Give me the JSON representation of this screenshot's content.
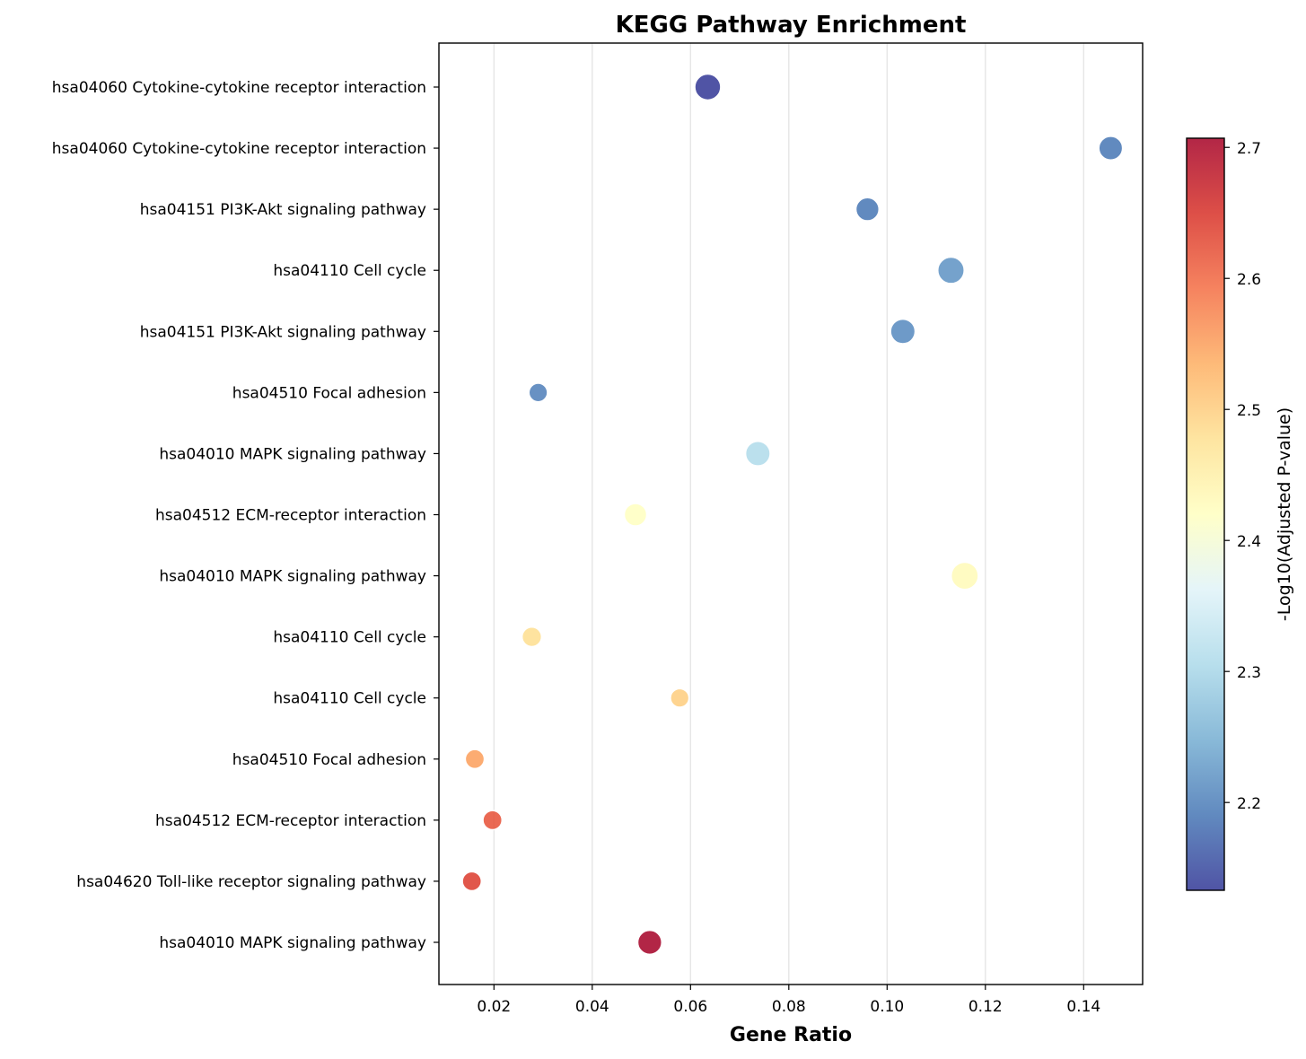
{
  "chart_data": {
    "type": "scatter",
    "title": "KEGG Pathway Enrichment",
    "xlabel": "Gene Ratio",
    "ylabel": "",
    "xlim": [
      0.0088,
      0.152
    ],
    "xticks": [
      0.02,
      0.04,
      0.06,
      0.08,
      0.1,
      0.12,
      0.14
    ],
    "xtick_labels": [
      "0.02",
      "0.04",
      "0.06",
      "0.08",
      "0.10",
      "0.12",
      "0.14"
    ],
    "grid": "vertical",
    "colorbar": {
      "label": "-Log10(Adjusted P-value)",
      "colormap": "RdYlBu_r",
      "range": [
        2.133,
        2.707
      ],
      "ticks": [
        2.2,
        2.3,
        2.4,
        2.5,
        2.6,
        2.7
      ],
      "tick_labels": [
        "2.2",
        "2.3",
        "2.4",
        "2.5",
        "2.6",
        "2.7"
      ]
    },
    "points": [
      {
        "label": "hsa04060 Cytokine-cytokine receptor interaction",
        "x": 0.0635,
        "neglog10p": 2.133,
        "size": 30
      },
      {
        "label": "hsa04060 Cytokine-cytokine receptor interaction",
        "x": 0.1455,
        "neglog10p": 2.19,
        "size": 22
      },
      {
        "label": "hsa04151 PI3K-Akt signaling pathway",
        "x": 0.096,
        "neglog10p": 2.19,
        "size": 20
      },
      {
        "label": "hsa04110 Cell cycle",
        "x": 0.113,
        "neglog10p": 2.22,
        "size": 32
      },
      {
        "label": "hsa04151 PI3K-Akt signaling pathway",
        "x": 0.1032,
        "neglog10p": 2.21,
        "size": 25
      },
      {
        "label": "hsa04510 Focal adhesion",
        "x": 0.029,
        "neglog10p": 2.2,
        "size": 8
      },
      {
        "label": "hsa04010 MAPK signaling pathway",
        "x": 0.0737,
        "neglog10p": 2.31,
        "size": 25
      },
      {
        "label": "hsa04512 ECM-receptor interaction",
        "x": 0.0488,
        "neglog10p": 2.42,
        "size": 18
      },
      {
        "label": "hsa04010 MAPK signaling pathway",
        "x": 0.1158,
        "neglog10p": 2.43,
        "size": 35
      },
      {
        "label": "hsa04110 Cell cycle",
        "x": 0.0277,
        "neglog10p": 2.48,
        "size": 10
      },
      {
        "label": "hsa04110 Cell cycle",
        "x": 0.0578,
        "neglog10p": 2.5,
        "size": 8
      },
      {
        "label": "hsa04510 Focal adhesion",
        "x": 0.0161,
        "neglog10p": 2.55,
        "size": 9
      },
      {
        "label": "hsa04512 ECM-receptor interaction",
        "x": 0.0197,
        "neglog10p": 2.62,
        "size": 9
      },
      {
        "label": "hsa04620 Toll-like receptor signaling pathway",
        "x": 0.0155,
        "neglog10p": 2.64,
        "size": 9
      },
      {
        "label": "hsa04010 MAPK signaling pathway",
        "x": 0.0517,
        "neglog10p": 2.707,
        "size": 23
      }
    ]
  }
}
